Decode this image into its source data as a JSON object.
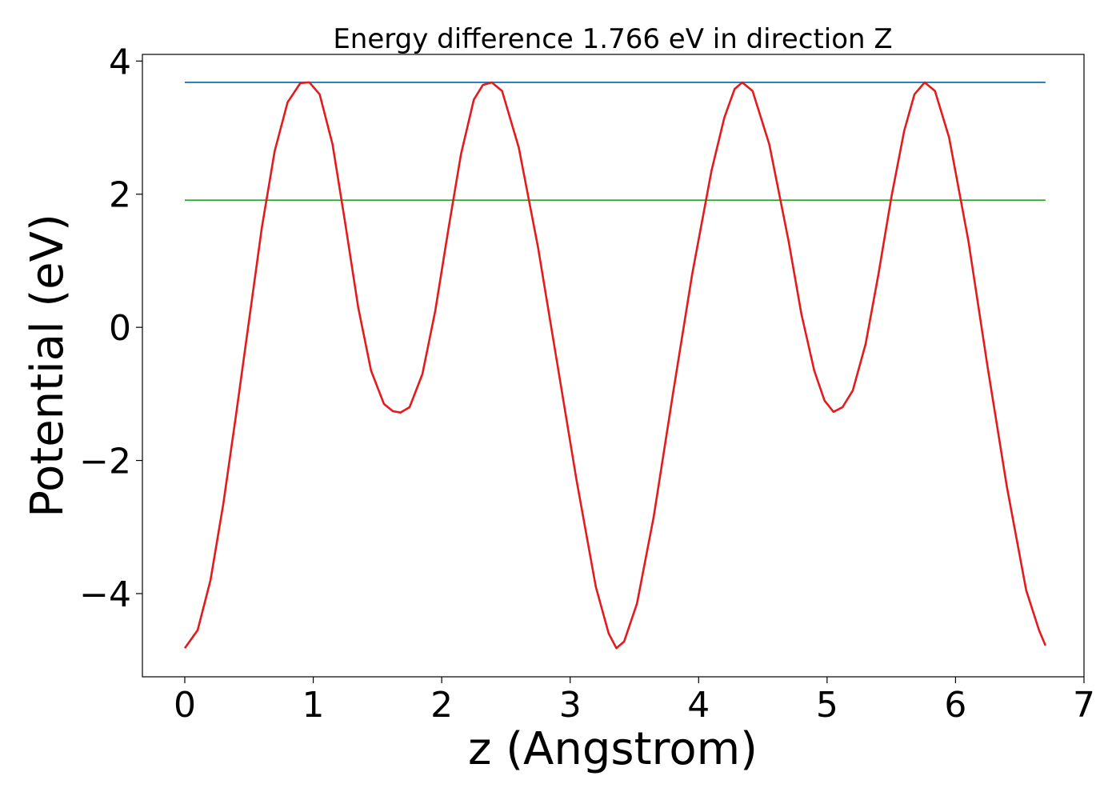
{
  "chart_data": {
    "type": "line",
    "title": "Energy difference 1.766 eV in direction Z",
    "xlabel": "z (Angstrom)",
    "ylabel": "Potential (eV)",
    "xlim": [
      -0.33,
      7.0
    ],
    "ylim": [
      -5.25,
      4.1
    ],
    "x_ticks": [
      0,
      1,
      2,
      3,
      4,
      5,
      6,
      7
    ],
    "y_ticks": [
      -4,
      -2,
      0,
      2,
      4
    ],
    "grid": false,
    "colors": {
      "potential": "#e41a1c",
      "upper": "#1f77b4",
      "lower": "#2ca02c"
    },
    "series": [
      {
        "x": [
          0.0,
          0.1,
          0.2,
          0.3,
          0.4,
          0.5,
          0.6,
          0.7,
          0.8,
          0.9,
          0.97,
          1.05,
          1.15,
          1.25,
          1.35,
          1.45,
          1.55,
          1.62,
          1.68,
          1.75,
          1.85,
          1.95,
          2.05,
          2.15,
          2.25,
          2.32,
          2.39,
          2.47,
          2.6,
          2.75,
          2.9,
          3.05,
          3.2,
          3.3,
          3.36,
          3.42,
          3.52,
          3.65,
          3.8,
          3.95,
          4.1,
          4.2,
          4.28,
          4.34,
          4.42,
          4.55,
          4.7,
          4.8,
          4.9,
          4.98,
          5.05,
          5.12,
          5.2,
          5.3,
          5.4,
          5.5,
          5.6,
          5.68,
          5.76,
          5.84,
          5.95,
          6.1,
          6.25,
          6.4,
          6.55,
          6.65,
          6.7
        ],
        "values": [
          -4.82,
          -4.55,
          -3.8,
          -2.65,
          -1.3,
          0.1,
          1.5,
          2.65,
          3.38,
          3.67,
          3.68,
          3.5,
          2.75,
          1.55,
          0.3,
          -0.65,
          -1.15,
          -1.26,
          -1.28,
          -1.2,
          -0.7,
          0.25,
          1.45,
          2.6,
          3.42,
          3.64,
          3.68,
          3.55,
          2.7,
          1.2,
          -0.55,
          -2.3,
          -3.9,
          -4.6,
          -4.82,
          -4.72,
          -4.15,
          -2.85,
          -1.0,
          0.8,
          2.35,
          3.15,
          3.58,
          3.68,
          3.55,
          2.75,
          1.3,
          0.2,
          -0.65,
          -1.1,
          -1.27,
          -1.2,
          -0.95,
          -0.25,
          0.8,
          1.95,
          2.95,
          3.5,
          3.68,
          3.55,
          2.85,
          1.3,
          -0.6,
          -2.4,
          -3.95,
          -4.55,
          -4.78
        ]
      },
      {
        "x": [
          0.0,
          6.7
        ],
        "values": [
          3.68,
          3.68
        ]
      },
      {
        "x": [
          0.0,
          6.7
        ],
        "values": [
          1.91,
          1.91
        ]
      }
    ]
  }
}
